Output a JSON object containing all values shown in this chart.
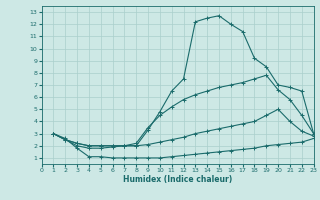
{
  "xlabel": "Humidex (Indice chaleur)",
  "xlim": [
    0,
    23
  ],
  "ylim": [
    0.5,
    13.5
  ],
  "xticks": [
    0,
    1,
    2,
    3,
    4,
    5,
    6,
    7,
    8,
    9,
    10,
    11,
    12,
    13,
    14,
    15,
    16,
    17,
    18,
    19,
    20,
    21,
    22,
    23
  ],
  "yticks": [
    1,
    2,
    3,
    4,
    5,
    6,
    7,
    8,
    9,
    10,
    11,
    12,
    13
  ],
  "background_color": "#cde8e5",
  "grid_color": "#aacfcc",
  "line_color": "#1a6b6b",
  "line1_x": [
    1,
    2,
    3,
    4,
    5,
    6,
    7,
    8,
    9,
    10,
    11,
    12,
    13,
    14,
    15,
    16,
    17,
    18,
    19,
    20,
    21,
    22,
    23
  ],
  "line1_y": [
    3.0,
    2.6,
    1.8,
    1.1,
    1.1,
    1.0,
    1.0,
    1.0,
    1.0,
    1.0,
    1.1,
    1.2,
    1.3,
    1.4,
    1.5,
    1.6,
    1.7,
    1.8,
    2.0,
    2.1,
    2.2,
    2.3,
    2.6
  ],
  "line2_x": [
    1,
    2,
    3,
    4,
    5,
    6,
    7,
    8,
    9,
    10,
    11,
    12,
    13,
    14,
    15,
    16,
    17,
    18,
    19,
    20,
    21,
    22,
    23
  ],
  "line2_y": [
    3.0,
    2.5,
    2.2,
    2.0,
    2.0,
    2.0,
    2.0,
    2.0,
    3.3,
    4.8,
    6.5,
    7.5,
    12.2,
    12.5,
    12.7,
    12.0,
    11.4,
    9.2,
    8.5,
    7.0,
    6.8,
    6.5,
    3.0
  ],
  "line3_x": [
    1,
    3,
    4,
    5,
    6,
    7,
    8,
    9,
    10,
    11,
    12,
    13,
    14,
    15,
    16,
    17,
    18,
    19,
    20,
    21,
    22,
    23
  ],
  "line3_y": [
    3.0,
    2.0,
    1.8,
    1.8,
    1.9,
    2.0,
    2.2,
    3.5,
    4.5,
    5.2,
    5.8,
    6.2,
    6.5,
    6.8,
    7.0,
    7.2,
    7.5,
    7.8,
    6.6,
    5.8,
    4.5,
    3.0
  ],
  "line4_x": [
    1,
    2,
    3,
    4,
    5,
    6,
    7,
    8,
    9,
    10,
    11,
    12,
    13,
    14,
    15,
    16,
    17,
    18,
    19,
    20,
    21,
    22,
    23
  ],
  "line4_y": [
    3.0,
    2.5,
    2.2,
    2.0,
    2.0,
    2.0,
    2.0,
    2.0,
    2.1,
    2.3,
    2.5,
    2.7,
    3.0,
    3.2,
    3.4,
    3.6,
    3.8,
    4.0,
    4.5,
    5.0,
    4.0,
    3.2,
    2.8
  ]
}
